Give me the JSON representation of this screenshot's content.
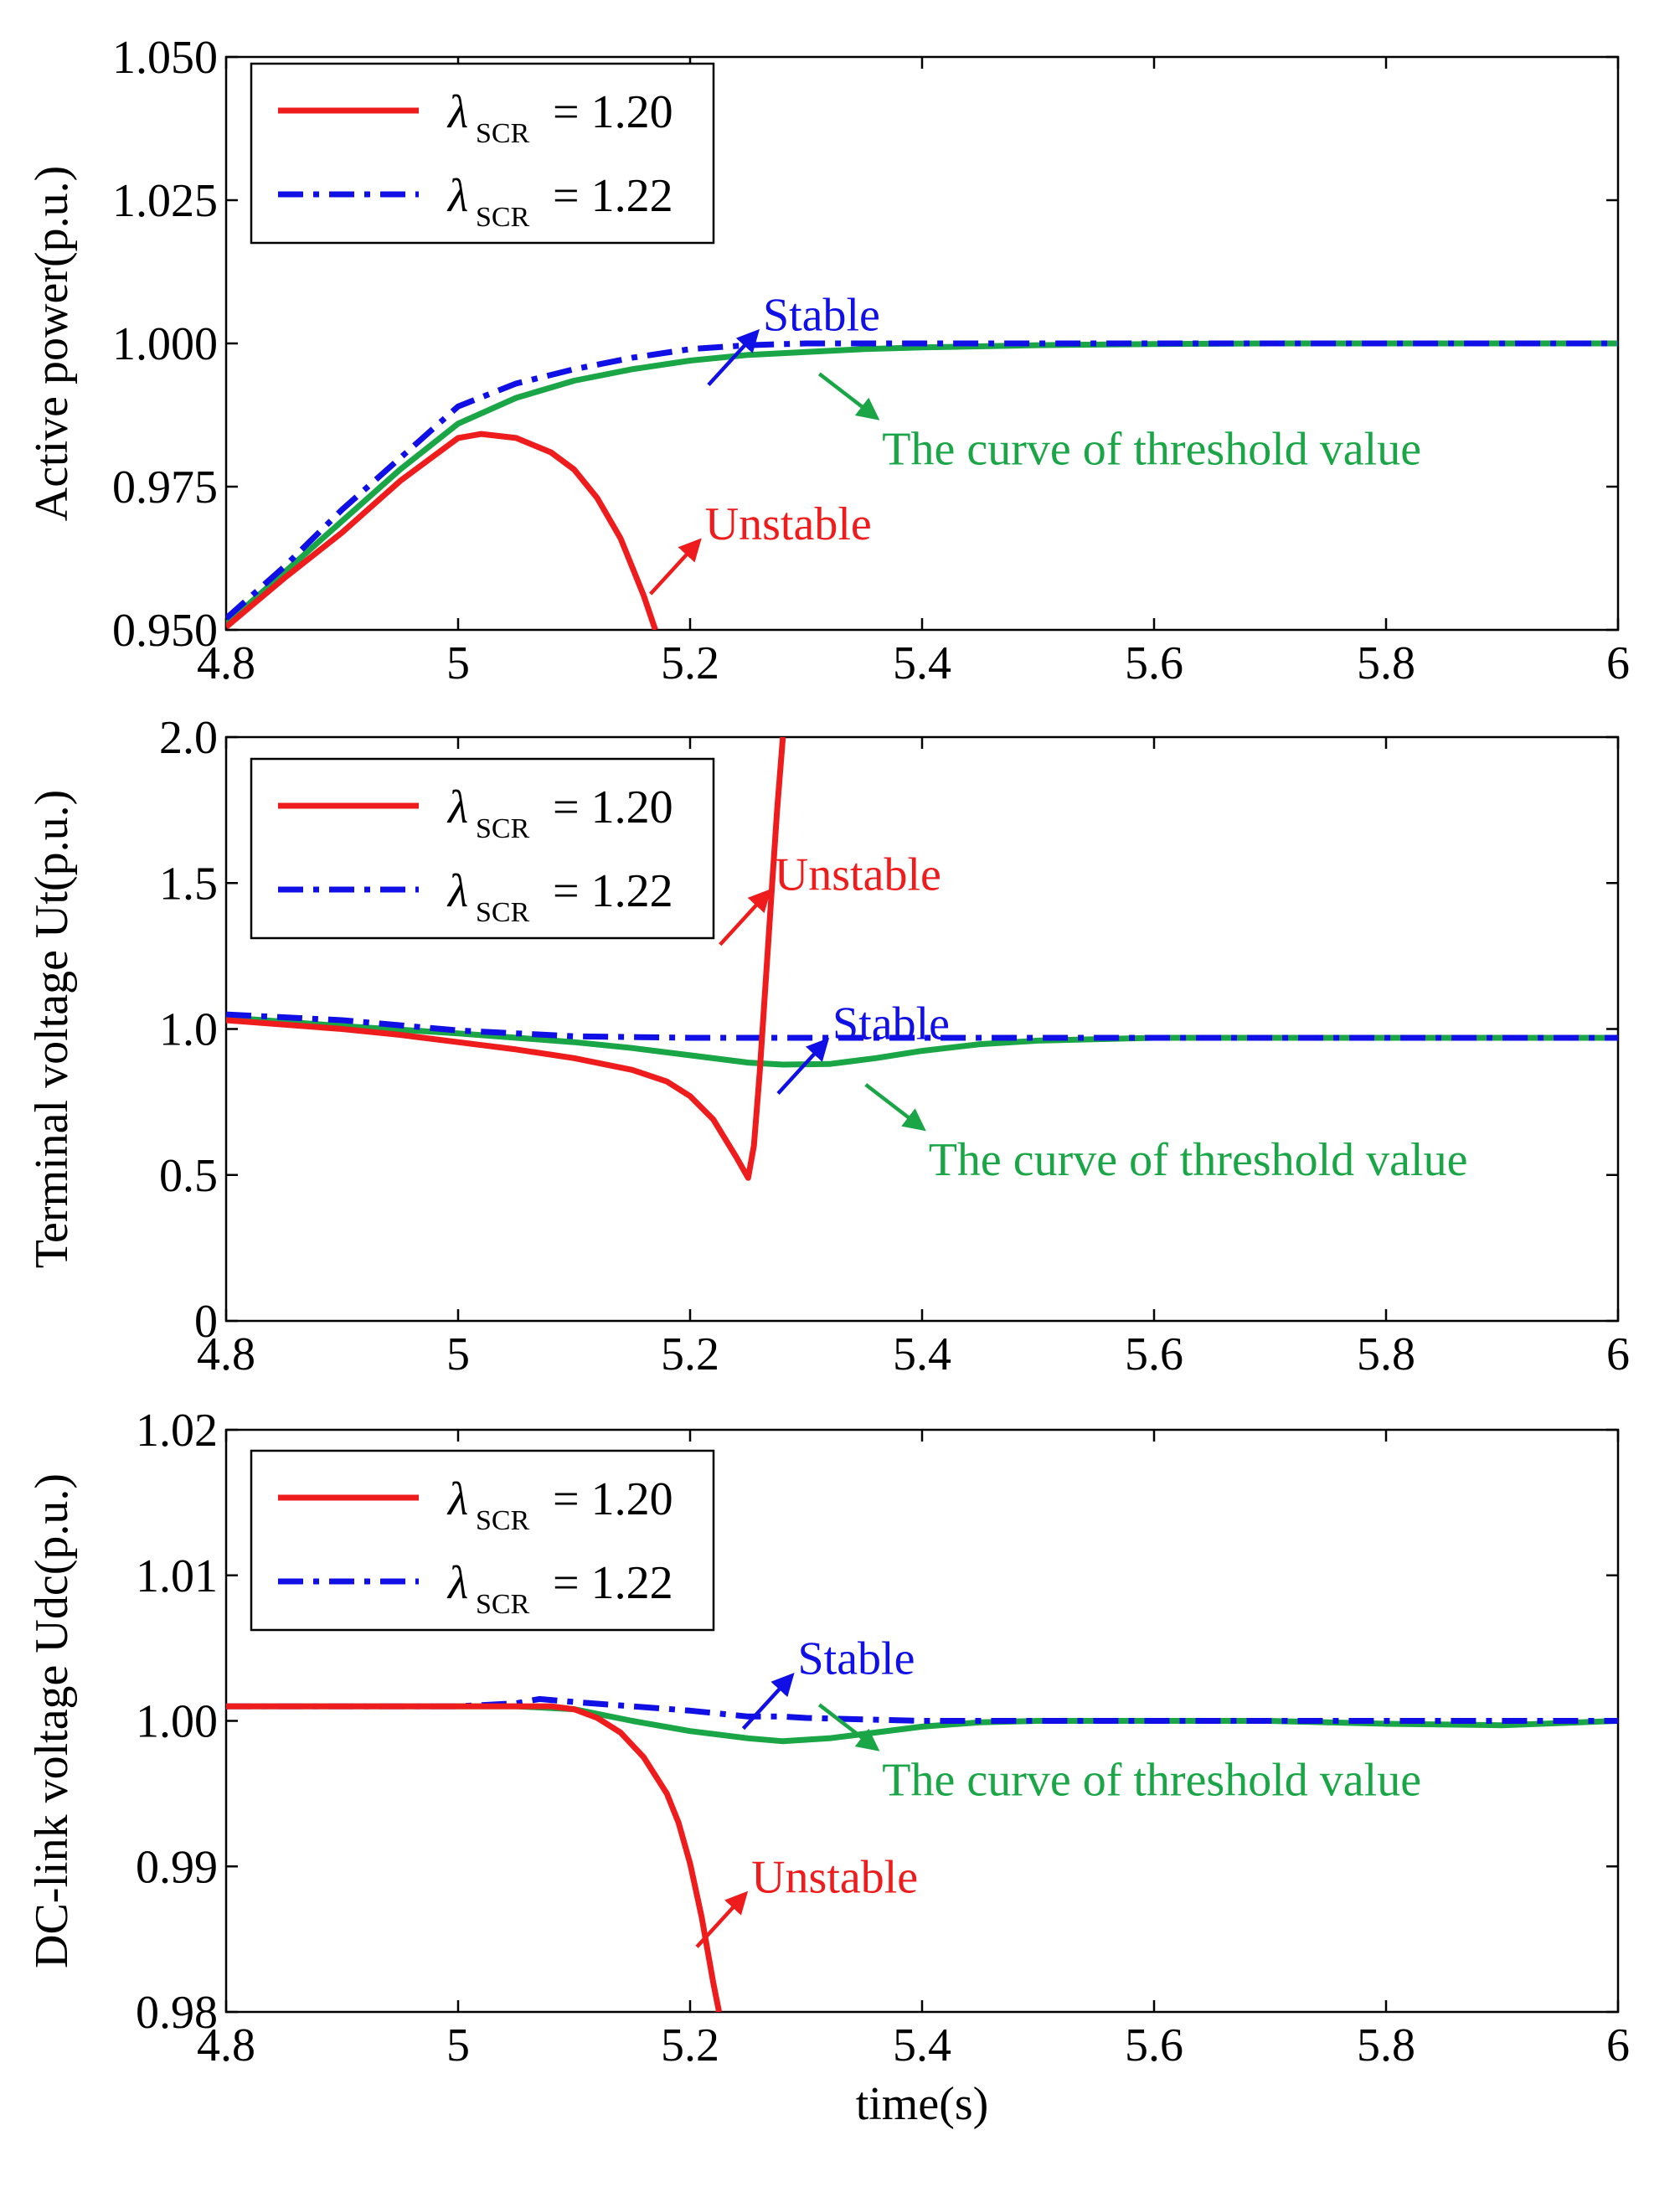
{
  "chart_data": [
    {
      "type": "line",
      "ylabel": "Active power(p.u.)",
      "xlabel": "",
      "xlim": [
        4.8,
        6
      ],
      "ylim": [
        0.95,
        1.05
      ],
      "xticks": [
        "4.8",
        "5",
        "5.2",
        "5.4",
        "5.6",
        "5.8",
        "6"
      ],
      "yticks": [
        "1.050",
        "1.025",
        "1.000",
        "0.975",
        "0.950"
      ],
      "ytick_values": [
        1.05,
        1.025,
        1.0,
        0.975,
        0.95
      ],
      "legend": [
        {
          "symbol": "λ",
          "sub": "SCR",
          "text": "= 1.20",
          "color": "#ee1c1c",
          "style": "solid"
        },
        {
          "symbol": "λ",
          "sub": "SCR",
          "text": "= 1.22",
          "color": "#1010e6",
          "style": "dashdot"
        }
      ],
      "annotations": [
        {
          "text": "Stable",
          "color": "#1010e6",
          "at": [
            5.27,
            1.003
          ]
        },
        {
          "text": "The curve of threshold value",
          "color": "#1aa646",
          "at": [
            5.38,
            0.983
          ]
        },
        {
          "text": "Unstable",
          "color": "#ee1c1c",
          "at": [
            5.22,
            0.9665
          ]
        }
      ],
      "series": [
        {
          "name": "λSCR = 1.20 (Unstable)",
          "color": "#ee1c1c",
          "style": "solid",
          "x": [
            4.8,
            4.85,
            4.9,
            4.95,
            5.0,
            5.02,
            5.05,
            5.08,
            5.1,
            5.12,
            5.14,
            5.15,
            5.16,
            5.17
          ],
          "y": [
            0.9505,
            0.959,
            0.967,
            0.976,
            0.9835,
            0.9842,
            0.9835,
            0.981,
            0.978,
            0.973,
            0.966,
            0.961,
            0.956,
            0.95
          ]
        },
        {
          "name": "λSCR = 1.22 (Stable)",
          "color": "#1010e6",
          "style": "dashdot",
          "x": [
            4.8,
            4.85,
            4.9,
            4.95,
            5.0,
            5.05,
            5.1,
            5.15,
            5.2,
            5.25,
            5.3,
            5.35,
            5.4,
            5.5,
            5.6,
            5.8,
            6.0
          ],
          "y": [
            0.952,
            0.961,
            0.971,
            0.98,
            0.989,
            0.993,
            0.9955,
            0.9975,
            0.999,
            0.9997,
            1.0,
            1.0,
            1.0,
            1.0,
            1.0,
            1.0,
            1.0
          ]
        },
        {
          "name": "The curve of threshold value",
          "color": "#1aa646",
          "style": "solid",
          "x": [
            4.8,
            4.85,
            4.9,
            4.95,
            5.0,
            5.05,
            5.1,
            5.15,
            5.2,
            5.25,
            5.3,
            5.35,
            5.4,
            5.5,
            5.6,
            5.7,
            5.8,
            5.9,
            6.0
          ],
          "y": [
            0.951,
            0.96,
            0.969,
            0.978,
            0.986,
            0.9905,
            0.9935,
            0.9955,
            0.997,
            0.998,
            0.9985,
            0.999,
            0.9993,
            0.9997,
            0.9999,
            1.0,
            1.0,
            1.0,
            1.0
          ]
        }
      ]
    },
    {
      "type": "line",
      "ylabel": "Terminal voltage Ut(p.u.)",
      "xlabel": "",
      "xlim": [
        4.8,
        6
      ],
      "ylim": [
        0,
        2
      ],
      "xticks": [
        "4.8",
        "5",
        "5.2",
        "5.4",
        "5.6",
        "5.8",
        "6"
      ],
      "yticks": [
        "2.0",
        "1.5",
        "1.0",
        "0.5",
        "0"
      ],
      "ytick_values": [
        2.0,
        1.5,
        1.0,
        0.5,
        0.0
      ],
      "legend": [
        {
          "symbol": "λ",
          "sub": "SCR",
          "text": "= 1.20",
          "color": "#ee1c1c",
          "style": "solid"
        },
        {
          "symbol": "λ",
          "sub": "SCR",
          "text": "= 1.22",
          "color": "#1010e6",
          "style": "dashdot"
        }
      ],
      "annotations": [
        {
          "text": "Unstable",
          "color": "#ee1c1c",
          "at": [
            5.28,
            1.49
          ]
        },
        {
          "text": "Stable",
          "color": "#1010e6",
          "at": [
            5.33,
            0.98
          ]
        },
        {
          "text": "The curve of threshold value",
          "color": "#1aa646",
          "at": [
            5.42,
            0.58
          ]
        }
      ],
      "series": [
        {
          "name": "λSCR = 1.20 (Unstable)",
          "color": "#ee1c1c",
          "style": "solid",
          "x": [
            4.8,
            4.85,
            4.9,
            4.95,
            5.0,
            5.05,
            5.1,
            5.15,
            5.18,
            5.2,
            5.22,
            5.24,
            5.25,
            5.255,
            5.26,
            5.265,
            5.27,
            5.275,
            5.28
          ],
          "y": [
            1.03,
            1.015,
            1.0,
            0.98,
            0.955,
            0.93,
            0.9,
            0.86,
            0.82,
            0.77,
            0.69,
            0.56,
            0.49,
            0.6,
            0.85,
            1.15,
            1.45,
            1.75,
            2.0
          ]
        },
        {
          "name": "λSCR = 1.22 (Stable)",
          "color": "#1010e6",
          "style": "dashdot",
          "x": [
            4.8,
            4.9,
            5.0,
            5.1,
            5.2,
            5.3,
            5.4,
            5.6,
            5.8,
            6.0
          ],
          "y": [
            1.05,
            1.03,
            0.995,
            0.975,
            0.97,
            0.97,
            0.97,
            0.97,
            0.97,
            0.97
          ]
        },
        {
          "name": "The curve of threshold value",
          "color": "#1aa646",
          "style": "solid",
          "x": [
            4.8,
            4.9,
            5.0,
            5.1,
            5.15,
            5.2,
            5.25,
            5.28,
            5.32,
            5.36,
            5.4,
            5.45,
            5.5,
            5.6,
            5.7,
            5.8,
            6.0
          ],
          "y": [
            1.04,
            1.01,
            0.985,
            0.955,
            0.935,
            0.91,
            0.885,
            0.878,
            0.88,
            0.9,
            0.925,
            0.948,
            0.96,
            0.97,
            0.97,
            0.97,
            0.97
          ]
        }
      ]
    },
    {
      "type": "line",
      "ylabel": "DC-link voltage Udc(p.u.)",
      "xlabel": "time(s)",
      "xlim": [
        4.8,
        6
      ],
      "ylim": [
        0.98,
        1.02
      ],
      "xticks": [
        "4.8",
        "5",
        "5.2",
        "5.4",
        "5.6",
        "5.8",
        "6"
      ],
      "yticks": [
        "1.02",
        "1.01",
        "1.00",
        "0.99",
        "0.98"
      ],
      "ytick_values": [
        1.02,
        1.01,
        1.0,
        0.99,
        0.98
      ],
      "legend": [
        {
          "symbol": "λ",
          "sub": "SCR",
          "text": "= 1.20",
          "color": "#ee1c1c",
          "style": "solid"
        },
        {
          "symbol": "λ",
          "sub": "SCR",
          "text": "= 1.22",
          "color": "#1010e6",
          "style": "dashdot"
        }
      ],
      "annotations": [
        {
          "text": "Stable",
          "color": "#1010e6",
          "at": [
            5.3,
            1.0035
          ]
        },
        {
          "text": "The curve of threshold value",
          "color": "#1aa646",
          "at": [
            5.38,
            0.9965
          ]
        },
        {
          "text": "Unstable",
          "color": "#ee1c1c",
          "at": [
            5.26,
            0.9885
          ]
        }
      ],
      "series": [
        {
          "name": "λSCR = 1.20 (Unstable)",
          "color": "#ee1c1c",
          "style": "solid",
          "x": [
            4.8,
            4.9,
            5.0,
            5.05,
            5.08,
            5.1,
            5.12,
            5.14,
            5.16,
            5.18,
            5.19,
            5.2,
            5.21,
            5.22,
            5.225
          ],
          "y": [
            1.001,
            1.001,
            1.001,
            1.001,
            1.001,
            1.0008,
            1.0002,
            0.9992,
            0.9975,
            0.995,
            0.993,
            0.9902,
            0.9865,
            0.982,
            0.98
          ]
        },
        {
          "name": "λSCR = 1.22 (Stable)",
          "color": "#1010e6",
          "style": "dashdot",
          "x": [
            4.8,
            4.9,
            5.0,
            5.05,
            5.07,
            5.1,
            5.15,
            5.2,
            5.25,
            5.28,
            5.3,
            5.4,
            5.5,
            5.6,
            5.8,
            6.0
          ],
          "y": [
            1.001,
            1.001,
            1.001,
            1.0012,
            1.0015,
            1.0013,
            1.001,
            1.0007,
            1.0003,
            1.0003,
            1.0002,
            1.0,
            1.0,
            1.0,
            1.0,
            1.0
          ]
        },
        {
          "name": "The curve of threshold value",
          "color": "#1aa646",
          "style": "solid",
          "x": [
            4.8,
            4.9,
            5.0,
            5.05,
            5.1,
            5.15,
            5.2,
            5.25,
            5.28,
            5.32,
            5.36,
            5.4,
            5.45,
            5.5,
            5.6,
            5.7,
            5.8,
            5.9,
            6.0
          ],
          "y": [
            1.001,
            1.001,
            1.001,
            1.001,
            1.0008,
            1.0,
            0.9993,
            0.9988,
            0.9986,
            0.9988,
            0.9992,
            0.9996,
            0.9999,
            1.0,
            1.0,
            1.0,
            0.9998,
            0.9997,
            1.0
          ]
        }
      ]
    }
  ]
}
